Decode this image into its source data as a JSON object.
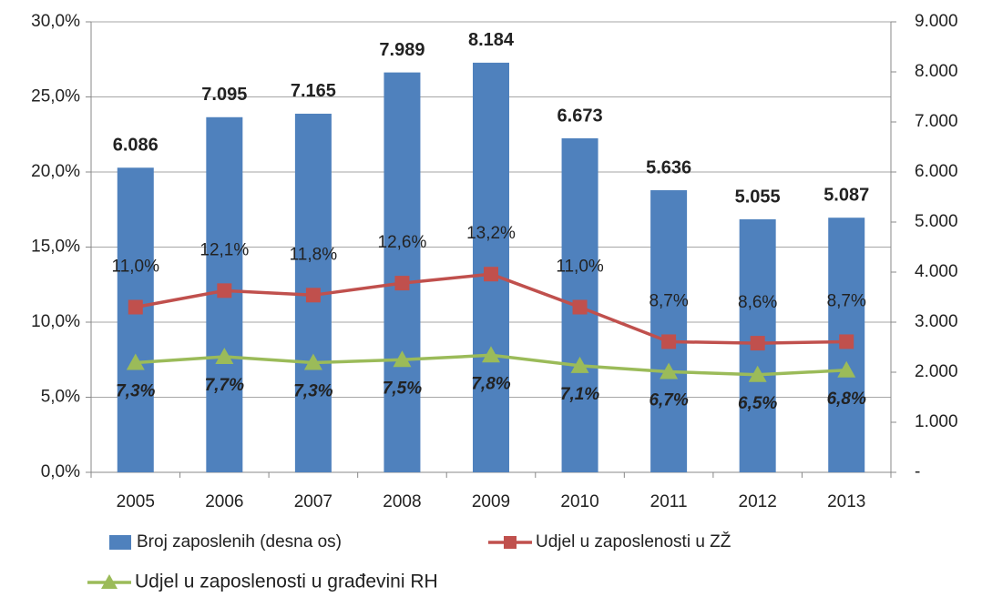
{
  "chart_data": {
    "type": "bar",
    "categories": [
      "2005",
      "2006",
      "2007",
      "2008",
      "2009",
      "2010",
      "2011",
      "2012",
      "2013"
    ],
    "series": [
      {
        "name": "Broj zaposlenih (desna os)",
        "type": "bar",
        "axis": "y2",
        "color": "#4f81bd",
        "values": [
          6086,
          7095,
          7165,
          7989,
          8184,
          6673,
          5636,
          5055,
          5087
        ],
        "value_labels": [
          "6.086",
          "7.095",
          "7.165",
          "7.989",
          "8.184",
          "6.673",
          "5.636",
          "5.055",
          "5.087"
        ]
      },
      {
        "name": "Udjel u zaposlenosti u ZŽ",
        "type": "line",
        "color": "#c0504d",
        "values": [
          11.0,
          12.1,
          11.8,
          12.6,
          13.2,
          11.0,
          8.7,
          8.6,
          8.7
        ],
        "value_labels": [
          "11,0%",
          "12,1%",
          "11,8%",
          "12,6%",
          "13,2%",
          "11,0%",
          "8,7%",
          "8,6%",
          "8,7%"
        ]
      },
      {
        "name": "Udjel u zaposlenosti u građevini RH",
        "type": "line",
        "color": "#9bbb59",
        "values": [
          7.3,
          7.7,
          7.3,
          7.5,
          7.8,
          7.1,
          6.7,
          6.5,
          6.8
        ],
        "value_labels": [
          "7,3%",
          "7,7%",
          "7,3%",
          "7,5%",
          "7,8%",
          "7,1%",
          "6,7%",
          "6,5%",
          "6,8%"
        ]
      }
    ],
    "ylim": [
      0,
      30
    ],
    "yticks": [
      {
        "value": 0,
        "label": "0,0%"
      },
      {
        "value": 5,
        "label": "5,0%"
      },
      {
        "value": 10,
        "label": "10,0%"
      },
      {
        "value": 15,
        "label": "15,0%"
      },
      {
        "value": 20,
        "label": "20,0%"
      },
      {
        "value": 25,
        "label": "25,0%"
      },
      {
        "value": 30,
        "label": "30,0%"
      }
    ],
    "y2lim": [
      0,
      9000
    ],
    "y2ticks": [
      {
        "value": 0,
        "label": "-"
      },
      {
        "value": 1000,
        "label": "1.000"
      },
      {
        "value": 2000,
        "label": "2.000"
      },
      {
        "value": 3000,
        "label": "3.000"
      },
      {
        "value": 4000,
        "label": "4.000"
      },
      {
        "value": 5000,
        "label": "5.000"
      },
      {
        "value": 6000,
        "label": "6.000"
      },
      {
        "value": 7000,
        "label": "7.000"
      },
      {
        "value": 8000,
        "label": "8.000"
      },
      {
        "value": 9000,
        "label": "9.000"
      }
    ],
    "grid": true
  }
}
